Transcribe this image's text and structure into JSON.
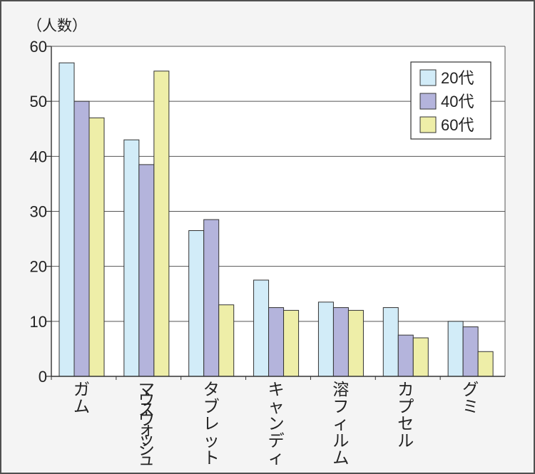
{
  "chart_data": {
    "type": "bar",
    "ylabel": "（人数）",
    "ylim": [
      0,
      60
    ],
    "yticks": [
      0,
      10,
      20,
      30,
      40,
      50,
      60
    ],
    "grid": true,
    "legend_position": "top-right",
    "categories": [
      "ガム",
      "マウスウォッシュ",
      "タブレット",
      "キャンディ",
      "溶フィルム",
      "カプセル",
      "グミ"
    ],
    "series": [
      {
        "name": "20代",
        "color": "#d2ecf8",
        "values": [
          57,
          43,
          26.5,
          17.5,
          13.5,
          12.5,
          10
        ]
      },
      {
        "name": "40代",
        "color": "#b4b4dc",
        "values": [
          50,
          38.5,
          28.5,
          12.5,
          12.5,
          7.5,
          9
        ]
      },
      {
        "name": "60代",
        "color": "#eeeea8",
        "values": [
          47,
          55.5,
          13,
          12,
          12,
          7,
          4.5
        ]
      }
    ]
  }
}
